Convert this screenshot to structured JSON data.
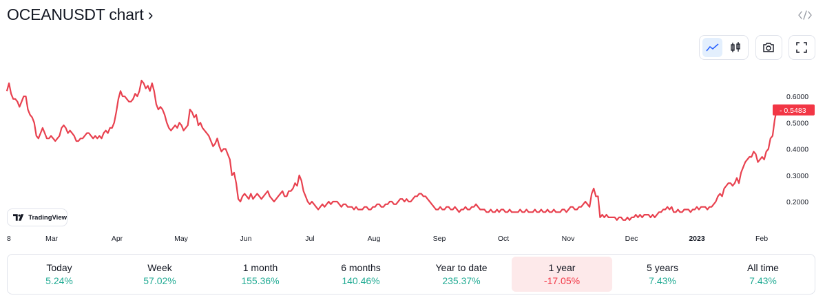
{
  "header": {
    "title": "OCEANUSDT chart ›",
    "embed_icon": "code-embed-icon"
  },
  "toolbar": {
    "line_chart_icon": "line-chart-icon",
    "candles_icon": "candlestick-icon",
    "camera_icon": "camera-icon",
    "fullscreen_icon": "fullscreen-icon"
  },
  "badge": {
    "label": "TradingView"
  },
  "colors": {
    "line": "#e8414f",
    "positive": "#22ab94",
    "negative": "#f23645",
    "active_bg": "#fde9ea"
  },
  "chart_data": {
    "type": "line",
    "title": "OCEANUSDT",
    "x_labels": [
      "8",
      "Mar",
      "Apr",
      "May",
      "Jun",
      "Jul",
      "Aug",
      "Sep",
      "Oct",
      "Nov",
      "Dec",
      "2023",
      "Feb"
    ],
    "y_ticks": [
      "0.6000",
      "0.5000",
      "0.4000",
      "0.3000",
      "0.2000"
    ],
    "ylim": [
      0.12,
      0.66
    ],
    "last_price": "0.5483",
    "series": [
      {
        "name": "OCEANUSDT",
        "values": [
          0.62,
          0.65,
          0.61,
          0.59,
          0.59,
          0.58,
          0.56,
          0.58,
          0.6,
          0.6,
          0.55,
          0.53,
          0.52,
          0.5,
          0.45,
          0.44,
          0.46,
          0.48,
          0.46,
          0.44,
          0.44,
          0.45,
          0.44,
          0.43,
          0.44,
          0.45,
          0.48,
          0.49,
          0.48,
          0.46,
          0.47,
          0.46,
          0.45,
          0.43,
          0.43,
          0.44,
          0.44,
          0.45,
          0.46,
          0.46,
          0.45,
          0.44,
          0.45,
          0.44,
          0.45,
          0.44,
          0.46,
          0.47,
          0.46,
          0.48,
          0.48,
          0.5,
          0.54,
          0.59,
          0.62,
          0.6,
          0.6,
          0.59,
          0.58,
          0.58,
          0.59,
          0.61,
          0.6,
          0.62,
          0.66,
          0.65,
          0.63,
          0.64,
          0.62,
          0.65,
          0.62,
          0.57,
          0.55,
          0.56,
          0.55,
          0.53,
          0.5,
          0.48,
          0.47,
          0.48,
          0.49,
          0.48,
          0.5,
          0.49,
          0.47,
          0.48,
          0.49,
          0.55,
          0.54,
          0.52,
          0.53,
          0.49,
          0.5,
          0.48,
          0.47,
          0.46,
          0.45,
          0.43,
          0.41,
          0.42,
          0.44,
          0.41,
          0.39,
          0.4,
          0.4,
          0.38,
          0.36,
          0.3,
          0.31,
          0.27,
          0.21,
          0.2,
          0.22,
          0.23,
          0.22,
          0.21,
          0.23,
          0.21,
          0.22,
          0.23,
          0.22,
          0.21,
          0.22,
          0.23,
          0.24,
          0.22,
          0.21,
          0.2,
          0.21,
          0.22,
          0.23,
          0.24,
          0.22,
          0.22,
          0.24,
          0.24,
          0.25,
          0.27,
          0.26,
          0.3,
          0.28,
          0.24,
          0.22,
          0.2,
          0.19,
          0.2,
          0.19,
          0.18,
          0.17,
          0.18,
          0.19,
          0.18,
          0.19,
          0.2,
          0.19,
          0.2,
          0.2,
          0.2,
          0.19,
          0.18,
          0.19,
          0.19,
          0.18,
          0.18,
          0.18,
          0.17,
          0.18,
          0.17,
          0.17,
          0.17,
          0.18,
          0.18,
          0.17,
          0.17,
          0.18,
          0.18,
          0.19,
          0.19,
          0.18,
          0.18,
          0.19,
          0.19,
          0.2,
          0.2,
          0.19,
          0.19,
          0.2,
          0.21,
          0.21,
          0.2,
          0.21,
          0.2,
          0.2,
          0.21,
          0.22,
          0.22,
          0.23,
          0.23,
          0.22,
          0.22,
          0.21,
          0.2,
          0.19,
          0.18,
          0.17,
          0.17,
          0.18,
          0.17,
          0.17,
          0.18,
          0.18,
          0.17,
          0.17,
          0.18,
          0.17,
          0.16,
          0.17,
          0.17,
          0.18,
          0.17,
          0.17,
          0.18,
          0.18,
          0.19,
          0.18,
          0.17,
          0.17,
          0.17,
          0.16,
          0.16,
          0.17,
          0.16,
          0.16,
          0.17,
          0.16,
          0.17,
          0.17,
          0.16,
          0.16,
          0.17,
          0.16,
          0.16,
          0.16,
          0.16,
          0.17,
          0.16,
          0.16,
          0.17,
          0.16,
          0.16,
          0.16,
          0.17,
          0.16,
          0.16,
          0.17,
          0.16,
          0.16,
          0.17,
          0.16,
          0.16,
          0.17,
          0.16,
          0.16,
          0.16,
          0.17,
          0.17,
          0.16,
          0.17,
          0.18,
          0.18,
          0.17,
          0.17,
          0.18,
          0.18,
          0.19,
          0.2,
          0.19,
          0.18,
          0.23,
          0.25,
          0.22,
          0.22,
          0.14,
          0.15,
          0.14,
          0.15,
          0.14,
          0.14,
          0.14,
          0.14,
          0.13,
          0.14,
          0.14,
          0.13,
          0.13,
          0.14,
          0.13,
          0.14,
          0.14,
          0.15,
          0.14,
          0.15,
          0.14,
          0.15,
          0.15,
          0.15,
          0.14,
          0.15,
          0.14,
          0.15,
          0.16,
          0.16,
          0.17,
          0.17,
          0.18,
          0.17,
          0.18,
          0.16,
          0.16,
          0.17,
          0.16,
          0.16,
          0.17,
          0.17,
          0.17,
          0.16,
          0.17,
          0.17,
          0.18,
          0.17,
          0.18,
          0.18,
          0.18,
          0.17,
          0.18,
          0.18,
          0.19,
          0.2,
          0.22,
          0.23,
          0.22,
          0.25,
          0.26,
          0.27,
          0.27,
          0.26,
          0.27,
          0.29,
          0.27,
          0.31,
          0.33,
          0.35,
          0.36,
          0.37,
          0.37,
          0.39,
          0.38,
          0.35,
          0.36,
          0.37,
          0.36,
          0.39,
          0.4,
          0.44,
          0.45,
          0.51,
          0.55
        ]
      }
    ]
  },
  "periods": [
    {
      "label": "Today",
      "value": "5.24%",
      "sign": "pos"
    },
    {
      "label": "Week",
      "value": "57.02%",
      "sign": "pos"
    },
    {
      "label": "1 month",
      "value": "155.36%",
      "sign": "pos"
    },
    {
      "label": "6 months",
      "value": "140.46%",
      "sign": "pos"
    },
    {
      "label": "Year to date",
      "value": "235.37%",
      "sign": "pos"
    },
    {
      "label": "1 year",
      "value": "-17.05%",
      "sign": "neg",
      "active": true
    },
    {
      "label": "5 years",
      "value": "7.43%",
      "sign": "pos"
    },
    {
      "label": "All time",
      "value": "7.43%",
      "sign": "pos"
    }
  ]
}
